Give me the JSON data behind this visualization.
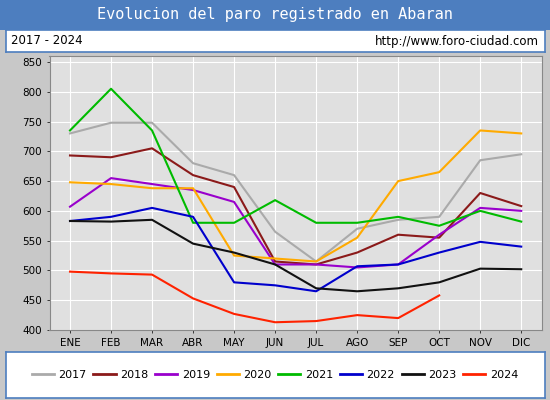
{
  "title": "Evolucion del paro registrado en Abaran",
  "title_bgcolor": "#4d7ebf",
  "title_color": "white",
  "subtitle_left": "2017 - 2024",
  "subtitle_right": "http://www.foro-ciudad.com",
  "months": [
    "ENE",
    "FEB",
    "MAR",
    "ABR",
    "MAY",
    "JUN",
    "JUL",
    "AGO",
    "SEP",
    "OCT",
    "NOV",
    "DIC"
  ],
  "ylim": [
    400,
    860
  ],
  "yticks": [
    400,
    450,
    500,
    550,
    600,
    650,
    700,
    750,
    800,
    850
  ],
  "series": {
    "2017": {
      "color": "#aaaaaa",
      "data": [
        730,
        748,
        748,
        680,
        660,
        565,
        515,
        570,
        585,
        590,
        685,
        695
      ]
    },
    "2018": {
      "color": "#8b1a1a",
      "data": [
        693,
        690,
        705,
        660,
        640,
        515,
        510,
        530,
        560,
        555,
        630,
        608
      ]
    },
    "2019": {
      "color": "#9900cc",
      "data": [
        607,
        655,
        645,
        635,
        615,
        510,
        510,
        505,
        510,
        560,
        605,
        600
      ]
    },
    "2020": {
      "color": "#ffaa00",
      "data": [
        648,
        645,
        638,
        638,
        525,
        520,
        515,
        555,
        650,
        665,
        735,
        730
      ]
    },
    "2021": {
      "color": "#00bb00",
      "data": [
        735,
        805,
        735,
        580,
        580,
        618,
        580,
        580,
        590,
        575,
        600,
        582
      ]
    },
    "2022": {
      "color": "#0000cc",
      "data": [
        583,
        590,
        605,
        590,
        480,
        475,
        465,
        507,
        510,
        530,
        548,
        540
      ]
    },
    "2023": {
      "color": "#111111",
      "data": [
        583,
        582,
        585,
        545,
        530,
        510,
        470,
        465,
        470,
        480,
        503,
        502
      ]
    },
    "2024": {
      "color": "#ff2200",
      "data": [
        498,
        495,
        493,
        453,
        427,
        413,
        415,
        425,
        420,
        458,
        null,
        null
      ]
    }
  },
  "plot_bgcolor": "#e0e0e0",
  "grid_color": "white",
  "border_color": "#4d7ebf",
  "fig_bgcolor": "#c8c8c8"
}
